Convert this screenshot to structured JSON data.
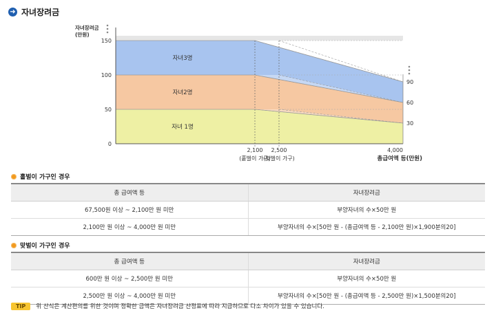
{
  "page": {
    "title": "자녀장려금"
  },
  "chart_data": {
    "type": "area",
    "ylabel": "자녀장려금\n(만원)",
    "xlabel": "총급여액 등(만원)",
    "y_ticks": [
      0,
      50,
      100,
      150
    ],
    "x_ticks": [
      {
        "value": 2100,
        "label": "2,100",
        "sublabel": "(홑벌이 가구)"
      },
      {
        "value": 2500,
        "label": "2,500",
        "sublabel": "(맞벌이 가구)"
      },
      {
        "value": 4000,
        "label": "4,000",
        "sublabel": ""
      }
    ],
    "right_ticks": [
      90,
      60,
      30
    ],
    "bands": [
      {
        "name": "자녀 1명",
        "top_start": 50,
        "top_end": 30,
        "color": "#eef0a4"
      },
      {
        "name": "자녀2명",
        "top_start": 100,
        "top_end": 60,
        "color": "#f6c8a2"
      },
      {
        "name": "자녀3명",
        "top_start": 150,
        "top_end": 90,
        "color": "#a8c4ef"
      }
    ]
  },
  "sections": [
    {
      "title": "홑벌이 가구인 경우",
      "headers": [
        "총 급여액 등",
        "자녀장려금"
      ],
      "rows": [
        [
          "67,500원 이상 ~ 2,100만 원 미만",
          "부양자녀의 수×50만 원"
        ],
        [
          "2,100만 원 이상 ~ 4,000만 원 미만",
          "부양자녀의 수×[50만 원 - (총급여액 등 - 2,100만 원)×1,900분의20]"
        ]
      ]
    },
    {
      "title": "맞벌이 가구인 경우",
      "headers": [
        "총 급여액 등",
        "자녀장려금"
      ],
      "rows": [
        [
          "600만 원 이상 ~ 2,500만 원 미만",
          "부양자녀의 수×50만 원"
        ],
        [
          "2,500만 원 이상 ~ 4,000만 원 미만",
          "부양자녀의 수×[50만 원 - (총급여액 등 - 2,500만 원)×1,500분의20]"
        ]
      ]
    }
  ],
  "tip": {
    "badge": "TIP",
    "text": "위 산식은 계산편의를 위한 것이며 정확한 금액은 자녀장려금 산정표에 따라 지급하므로 다소 차이가 있을 수 있습니다."
  }
}
